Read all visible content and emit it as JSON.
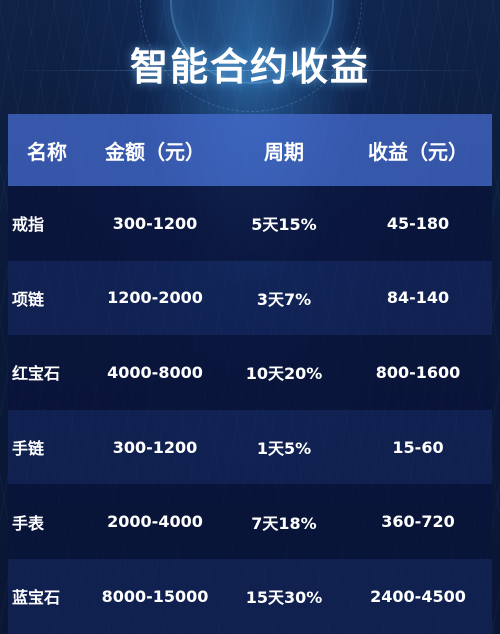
{
  "title": "智能合约收益",
  "table": {
    "headers": [
      "名称",
      "金额（元）",
      "周期",
      "收益（元）"
    ],
    "rows": [
      [
        "戒指",
        "300-1200",
        "5天15%",
        "45-180"
      ],
      [
        "项链",
        "1200-2000",
        "3天7%",
        "84-140"
      ],
      [
        "红宝石",
        "4000-8000",
        "10天20%",
        "800-1600"
      ],
      [
        "手链",
        "300-1200",
        "1天5%",
        "15-60"
      ],
      [
        "手表",
        "2000-4000",
        "7天18%",
        "360-720"
      ],
      [
        "蓝宝石",
        "8000-15000",
        "15天30%",
        "2400-4500"
      ]
    ]
  },
  "colors": {
    "background": "#0b1530",
    "header_band": "#4a6ed2",
    "text": "#ffffff"
  }
}
